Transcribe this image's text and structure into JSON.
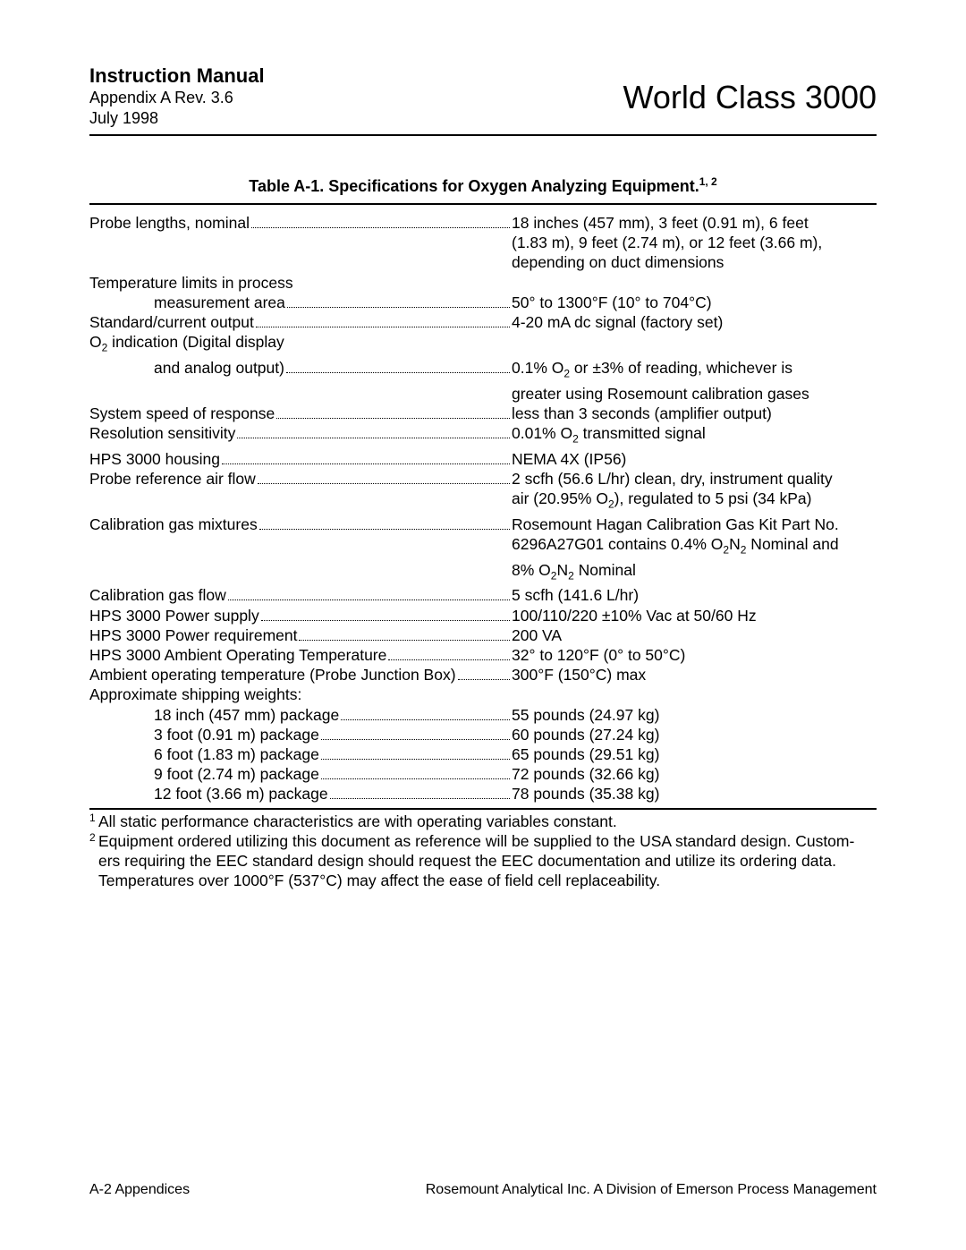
{
  "header": {
    "title": "Instruction Manual",
    "appendix": "Appendix A  Rev. 3.6",
    "date": "July 1998",
    "product": "World Class 3000"
  },
  "table": {
    "title_prefix": "Table A-1.  Specifications for Oxygen Analyzing Equipment.",
    "title_sup": "1, 2"
  },
  "specs": {
    "probe_lengths": {
      "label": "Probe lengths, nominal ",
      "value": "18 inches (457 mm), 3 feet (0.91 m), 6 feet",
      "cont1": "(1.83 m), 9 feet (2.74 m), or 12 feet (3.66 m),",
      "cont2": "depending on duct dimensions"
    },
    "temp_limits_header": "Temperature limits in process",
    "temp_measurement": {
      "label": "measurement area",
      "value": "50° to 1300°F (10° to 704°C)"
    },
    "std_current": {
      "label": "Standard/current output ",
      "value": "4-20 mA dc signal (factory set)"
    },
    "o2_indication_header_pre": "O",
    "o2_indication_header_post": " indication (Digital display",
    "o2_analog": {
      "label": "and analog output) ",
      "value_pre": "0.1% O",
      "value_post": " or ±3% of reading, whichever is",
      "cont1": "greater using Rosemount calibration gases"
    },
    "system_speed": {
      "label": "System speed of response ",
      "value": "less than 3 seconds (amplifier output)"
    },
    "resolution": {
      "label": "Resolution sensitivity",
      "value_pre": "0.01% O",
      "value_post": " transmitted signal"
    },
    "housing": {
      "label": "HPS 3000 housing ",
      "value": "NEMA 4X (IP56)"
    },
    "probe_ref_air": {
      "label": "Probe reference air flow",
      "value": "2 scfh (56.6 L/hr) clean, dry, instrument quality",
      "cont1_pre": "air  (20.95% O",
      "cont1_post": "),  regulated  to  5 psi (34 kPa)"
    },
    "cal_gas_mix": {
      "label": "Calibration gas mixtures ",
      "value": "Rosemount Hagan Calibration Gas Kit Part No.",
      "cont1_pre": "6296A27G01 contains 0.4% O",
      "cont1_mid": "N",
      "cont1_post": " Nominal and",
      "cont2_pre": "8% O",
      "cont2_mid": "N",
      "cont2_post": " Nominal"
    },
    "cal_gas_flow": {
      "label": "Calibration gas flow",
      "value": "5 scfh (141.6 L/hr)"
    },
    "power_supply": {
      "label": "HPS  3000  Power supply",
      "value": "100/110/220 ±10% Vac at 50/60 Hz"
    },
    "power_req": {
      "label": "HPS  3000  Power requirement ",
      "value": "200 VA"
    },
    "ambient_op": {
      "label": "HPS  3000  Ambient Operating Temperature",
      "value": "32° to 120°F (0° to 50°C)"
    },
    "ambient_probe": {
      "label": "Ambient operating temperature (Probe Junction Box) ",
      "value": "300°F (150°C) max"
    },
    "ship_header": "Approximate shipping weights:",
    "ship_18": {
      "label": "18 inch (457 mm) package ",
      "value": "55 pounds (24.97 kg)"
    },
    "ship_3": {
      "label": "3 foot (0.91 m) package ",
      "value": "60 pounds (27.24 kg)"
    },
    "ship_6": {
      "label": "6 foot (1.83 m) package ",
      "value": "65 pounds (29.51 kg)"
    },
    "ship_9": {
      "label": "9 foot (2.74 m) package ",
      "value": "72 pounds (32.66 kg)"
    },
    "ship_12": {
      "label": "12 foot (3.66 m) package",
      "value": "78 pounds (35.38 kg)"
    }
  },
  "footnotes": {
    "fn1": "All static performance characteristics are with operating variables constant.",
    "fn2a": "Equipment ordered utilizing this document as reference will be supplied to the USA standard design. Custom-",
    "fn2b": "ers requiring the EEC standard design should request the EEC documentation and utilize its ordering data.",
    "fn2c": "Temperatures over 1000°F (537°C) may affect the ease of field cell replaceability."
  },
  "footer": {
    "left": "A-2    Appendices",
    "right": "Rosemount Analytical Inc.    A Division of Emerson Process Management"
  }
}
